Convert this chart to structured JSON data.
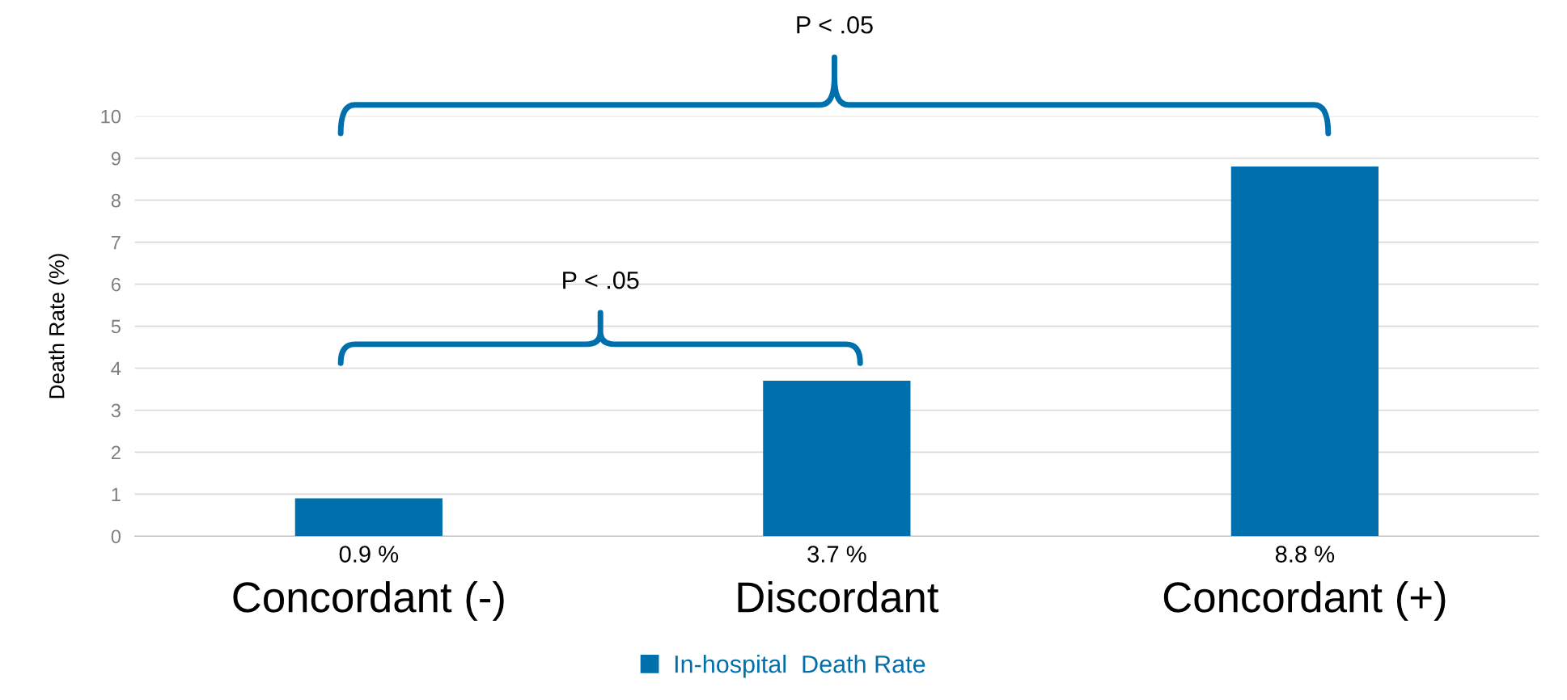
{
  "chart_data": {
    "type": "bar",
    "categories": [
      "Concordant (-)",
      "Discordant",
      "Concordant (+)"
    ],
    "series": [
      {
        "name": "In-hospital  Death Rate",
        "color": "#0070ad",
        "values": [
          0.9,
          3.7,
          8.8
        ],
        "value_labels": [
          "0.9 %",
          "3.7 %",
          "8.8 %"
        ]
      }
    ],
    "ylabel": "Death Rate (%)",
    "ylim": [
      0,
      10
    ],
    "yticks": [
      0,
      1,
      2,
      3,
      4,
      5,
      6,
      7,
      8,
      9,
      10
    ],
    "grid": "y",
    "legend": "bottom",
    "annotations": [
      "P < .05",
      "P < .05"
    ]
  }
}
